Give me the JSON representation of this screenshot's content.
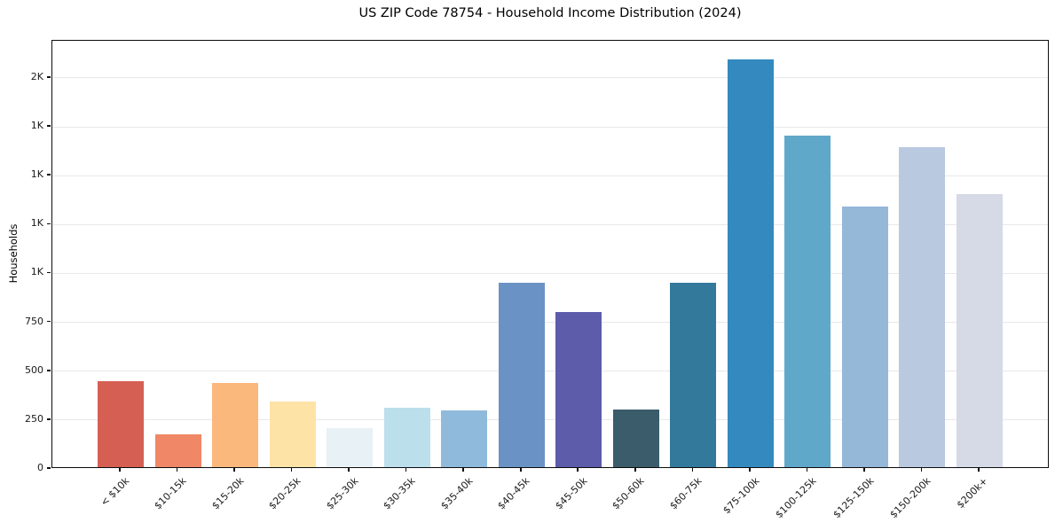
{
  "chart_data": {
    "type": "bar",
    "title": "US ZIP Code 78754 - Household Income Distribution (2024)",
    "xlabel": "",
    "ylabel": "Households",
    "categories": [
      "< $10k",
      "$10-15k",
      "$15-20k",
      "$20-25k",
      "$25-30k",
      "$30-35k",
      "$35-40k",
      "$40-45k",
      "$45-50k",
      "$50-60k",
      "$60-75k",
      "$75-100k",
      "$100-125k",
      "$125-150k",
      "$150-200k",
      "$200k+"
    ],
    "values": [
      438,
      170,
      432,
      336,
      198,
      306,
      292,
      944,
      795,
      296,
      944,
      2085,
      1694,
      1335,
      1637,
      1396
    ],
    "bar_colors": [
      "#d65f54",
      "#f08766",
      "#fab87d",
      "#fde3a6",
      "#e7f1f6",
      "#bcdfec",
      "#8fbadb",
      "#6b92c5",
      "#5c5cab",
      "#3a5c6b",
      "#33799c",
      "#348abf",
      "#60a8ca",
      "#95b7d8",
      "#b9c9e0",
      "#d6d9e6"
    ],
    "ytick_values": [
      0,
      250,
      500,
      750,
      1000,
      1250,
      1500,
      1750,
      2000
    ],
    "ytick_labels": [
      "0",
      "250",
      "500",
      "750",
      "1K",
      "1K",
      "1K",
      "1K",
      "2K"
    ],
    "ylim": [
      0,
      2190
    ],
    "grid": "horizontal-only",
    "legend": "none",
    "colors": {
      "background": "#ffffff",
      "spine": "#0d0d0d",
      "gridline": "#e8e8ec",
      "tick_text": "#1a1a1a",
      "title_text": "#000000"
    }
  }
}
